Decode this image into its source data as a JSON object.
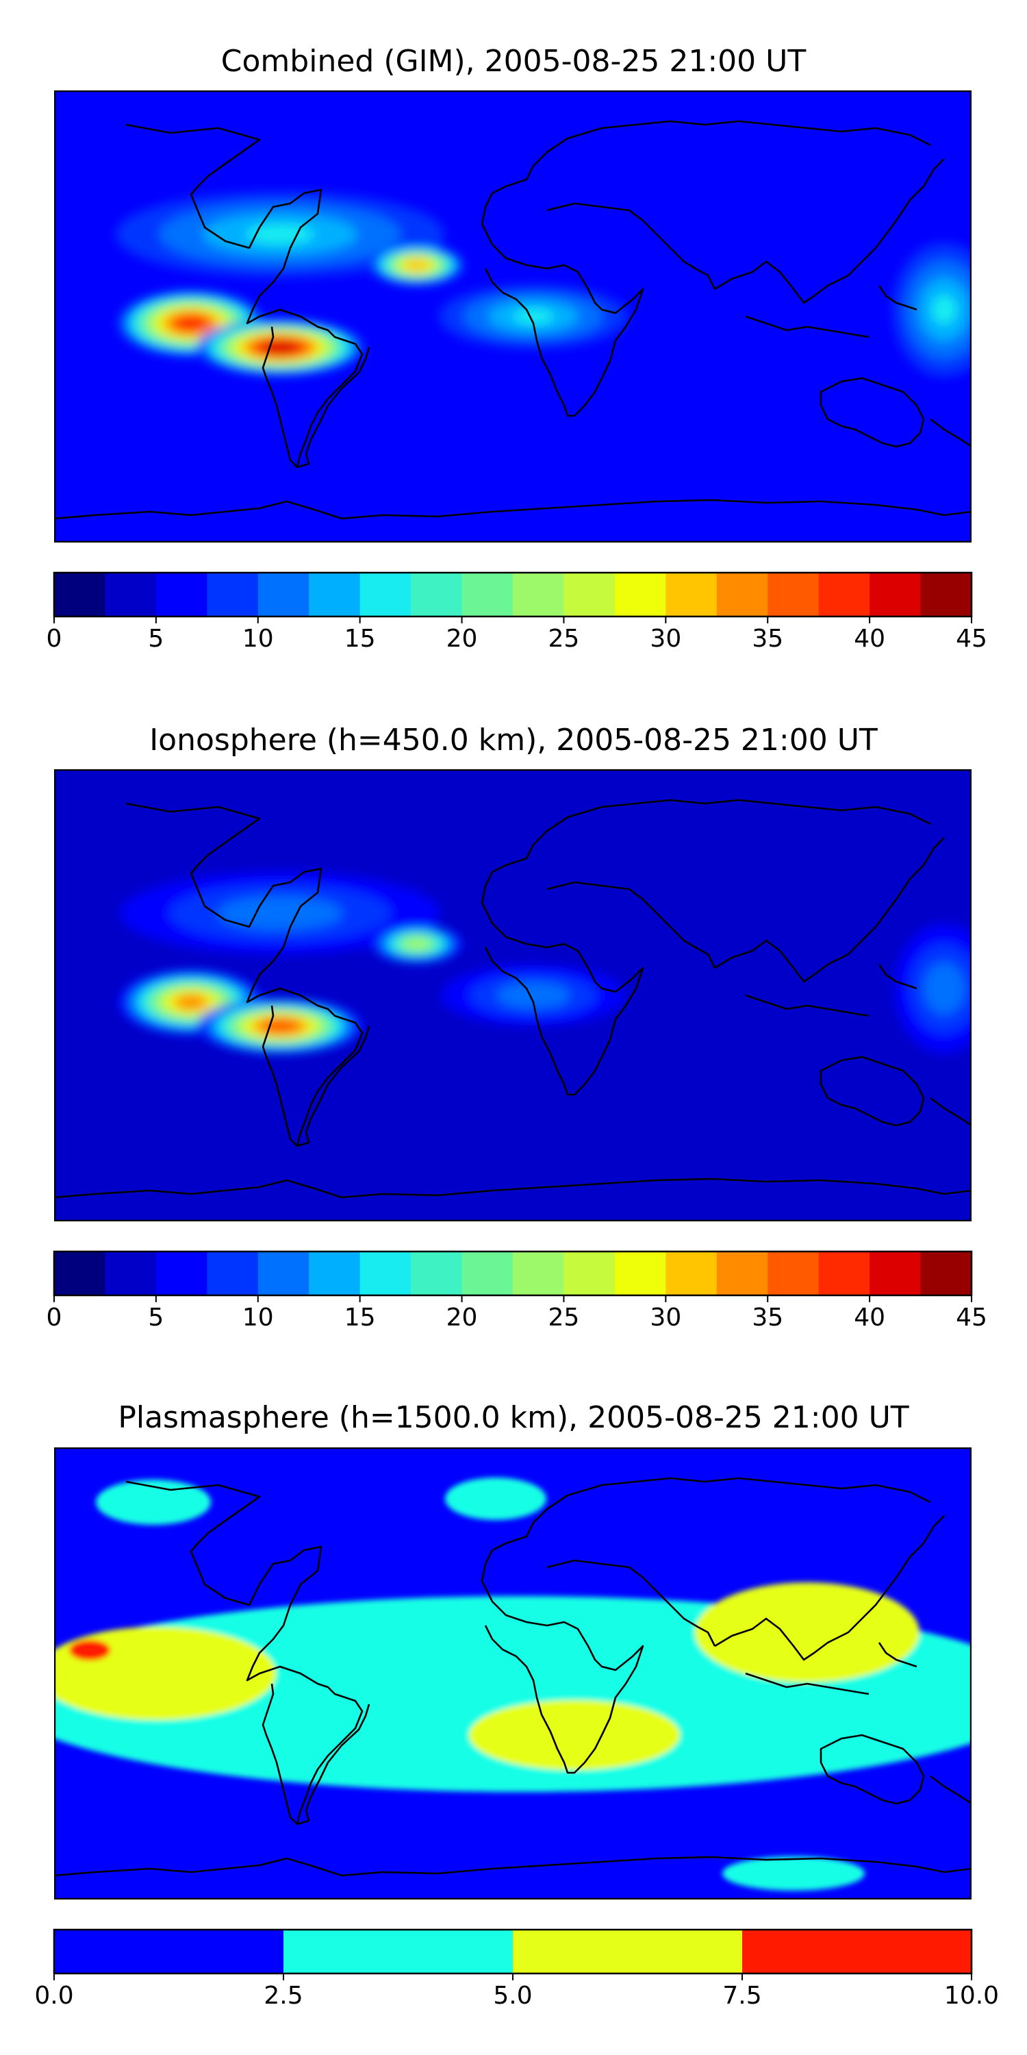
{
  "palette": {
    "jet": [
      "#00007f",
      "#0000c8",
      "#0000ff",
      "#0034ff",
      "#0070ff",
      "#00b0ff",
      "#19ecf0",
      "#3ff2c4",
      "#6cf594",
      "#9ef96a",
      "#c6fa3c",
      "#efff0a",
      "#ffc500",
      "#ff8c00",
      "#ff5a00",
      "#ff2a00",
      "#dd0000",
      "#980000"
    ],
    "plasma": [
      "#0000ff",
      "#19ffe6",
      "#e6ff19",
      "#ff1a00"
    ],
    "coastline": "#000000"
  },
  "chart_data": [
    {
      "type": "heatmap",
      "title": "Combined (GIM), 2005-08-25 21:00 UT",
      "colorbar": {
        "min": 0,
        "max": 45,
        "step": 2.5,
        "ticks": [
          "0",
          "5",
          "10",
          "15",
          "20",
          "25",
          "30",
          "35",
          "40",
          "45"
        ]
      },
      "background_level": 5,
      "features": [
        {
          "region": "south-america-equatorial-anomaly-peak",
          "value": 42
        },
        {
          "region": "central-pacific-crest",
          "value": 38
        },
        {
          "region": "caribbean-atlantic-crest",
          "value": 32
        },
        {
          "region": "north-america-band",
          "value": 15
        },
        {
          "region": "equatorial-africa",
          "value": 15
        },
        {
          "region": "western-pacific-asia",
          "value": 15
        },
        {
          "region": "indian-ocean",
          "value": 7
        },
        {
          "region": "siberia-north-asia",
          "value": 4
        },
        {
          "region": "southern-ocean",
          "value": 6
        }
      ]
    },
    {
      "type": "heatmap",
      "title": "Ionosphere  (h=450.0 km), 2005-08-25 21:00 UT",
      "colorbar": {
        "min": 0,
        "max": 45,
        "step": 2.5,
        "ticks": [
          "0",
          "5",
          "10",
          "15",
          "20",
          "25",
          "30",
          "35",
          "40",
          "45"
        ]
      },
      "background_level": 3,
      "features": [
        {
          "region": "south-america-equatorial-anomaly-peak",
          "value": 37
        },
        {
          "region": "central-pacific-crest",
          "value": 33
        },
        {
          "region": "caribbean-atlantic-crest",
          "value": 25
        },
        {
          "region": "north-america-band",
          "value": 12
        },
        {
          "region": "equatorial-africa",
          "value": 12
        },
        {
          "region": "western-pacific-asia",
          "value": 12
        },
        {
          "region": "indian-ocean",
          "value": 3
        },
        {
          "region": "siberia-north-asia",
          "value": 2
        },
        {
          "region": "southern-ocean",
          "value": 3
        }
      ]
    },
    {
      "type": "heatmap",
      "title": "Plasmasphere (h=1500.0 km), 2005-08-25 21:00 UT",
      "colorbar": {
        "min": 0.0,
        "max": 10.0,
        "step": 2.5,
        "ticks": [
          "0.0",
          "2.5",
          "5.0",
          "7.5",
          "10.0"
        ]
      },
      "background_level": 1.5,
      "features": [
        {
          "region": "low-latitude-belt",
          "value": 4
        },
        {
          "region": "tropical-pacific",
          "value": 6
        },
        {
          "region": "south-atlantic-africa",
          "value": 6
        },
        {
          "region": "asia-west-pacific",
          "value": 6
        },
        {
          "region": "central-pacific-spot",
          "value": 8
        },
        {
          "region": "north-pacific-patch",
          "value": 4
        },
        {
          "region": "antarctic-patch",
          "value": 4
        }
      ]
    }
  ]
}
